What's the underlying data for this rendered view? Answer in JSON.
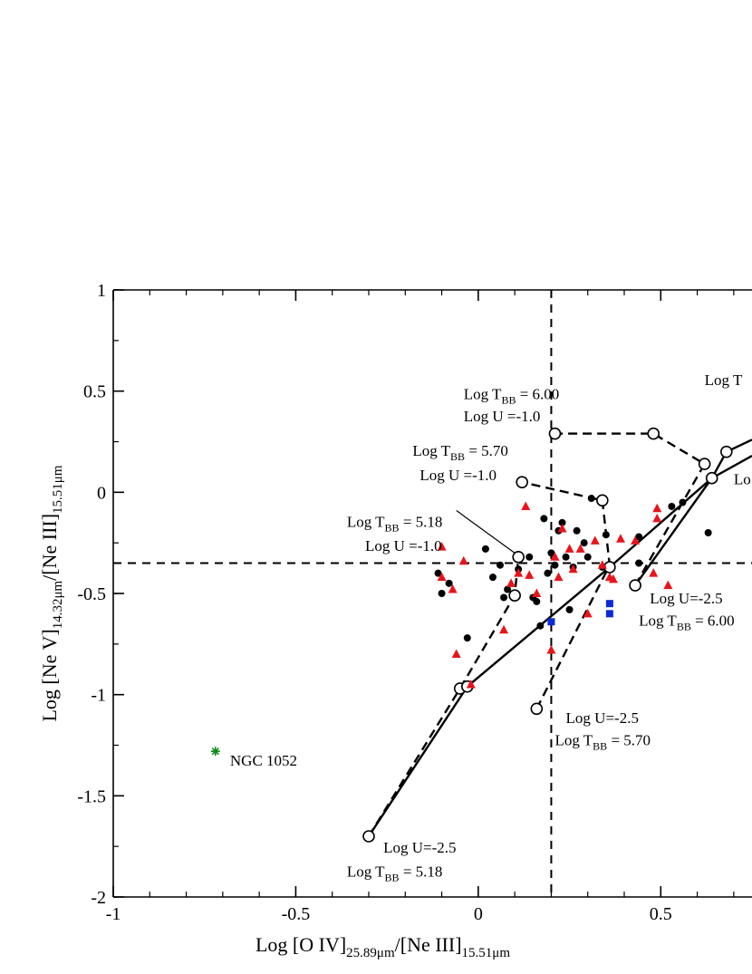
{
  "chart_data": {
    "type": "scatter",
    "xlabel_parts": [
      "Log [O IV]",
      "25.89μm",
      "/[Ne III]",
      "15.51μm"
    ],
    "ylabel_parts": [
      "Log [Ne V]",
      "14.32μm",
      "/[Ne III]",
      "15.51μm"
    ],
    "xlim": [
      -1,
      0.75
    ],
    "ylim": [
      -2,
      1
    ],
    "x_ticks": [
      {
        "value": -1,
        "label": "-1"
      },
      {
        "value": -0.5,
        "label": "-0.5"
      },
      {
        "value": 0,
        "label": "0"
      },
      {
        "value": 0.5,
        "label": "0.5"
      }
    ],
    "y_ticks": [
      {
        "value": -2,
        "label": "-2"
      },
      {
        "value": -1.5,
        "label": "-1.5"
      },
      {
        "value": -1,
        "label": "-1"
      },
      {
        "value": -0.5,
        "label": "-0.5"
      },
      {
        "value": 0,
        "label": "0"
      },
      {
        "value": 0.5,
        "label": "0.5"
      },
      {
        "value": 1,
        "label": "1"
      }
    ],
    "x_minor_step": 0.1,
    "y_minor_step": 0.25,
    "reference_lines": [
      {
        "orientation": "vertical",
        "value": 0.2,
        "style": "dashed"
      },
      {
        "orientation": "horizontal",
        "value": -0.35,
        "style": "dashed"
      }
    ],
    "series": [
      {
        "marker": "circle-filled",
        "color": "#000000",
        "points": [
          [
            -0.11,
            -0.4
          ],
          [
            -0.1,
            -0.5
          ],
          [
            -0.08,
            -0.45
          ],
          [
            -0.03,
            -0.72
          ],
          [
            0.02,
            -0.28
          ],
          [
            0.04,
            -0.42
          ],
          [
            0.06,
            -0.36
          ],
          [
            0.07,
            -0.52
          ],
          [
            0.08,
            -0.48
          ],
          [
            0.11,
            -0.38
          ],
          [
            0.14,
            -0.32
          ],
          [
            0.15,
            -0.52
          ],
          [
            0.16,
            -0.54
          ],
          [
            0.17,
            -0.66
          ],
          [
            0.18,
            -0.13
          ],
          [
            0.19,
            -0.4
          ],
          [
            0.2,
            -0.3
          ],
          [
            0.21,
            -0.36
          ],
          [
            0.22,
            -0.19
          ],
          [
            0.23,
            -0.15
          ],
          [
            0.24,
            -0.32
          ],
          [
            0.25,
            -0.58
          ],
          [
            0.26,
            -0.37
          ],
          [
            0.27,
            -0.19
          ],
          [
            0.29,
            -0.25
          ],
          [
            0.3,
            -0.32
          ],
          [
            0.31,
            -0.03
          ],
          [
            0.34,
            -0.37
          ],
          [
            0.35,
            -0.21
          ],
          [
            0.44,
            -0.22
          ],
          [
            0.44,
            -0.35
          ],
          [
            0.53,
            -0.07
          ],
          [
            0.56,
            -0.05
          ],
          [
            0.63,
            -0.2
          ]
        ]
      },
      {
        "marker": "triangle",
        "color": "#e8141b",
        "points": [
          [
            -0.1,
            -0.27
          ],
          [
            -0.1,
            -0.42
          ],
          [
            -0.07,
            -0.48
          ],
          [
            -0.06,
            -0.8
          ],
          [
            -0.04,
            -0.34
          ],
          [
            -0.02,
            -0.95
          ],
          [
            0.07,
            -0.68
          ],
          [
            0.09,
            -0.45
          ],
          [
            0.11,
            -0.4
          ],
          [
            0.13,
            -0.07
          ],
          [
            0.14,
            -0.41
          ],
          [
            0.16,
            -0.5
          ],
          [
            0.2,
            -0.78
          ],
          [
            0.21,
            -0.32
          ],
          [
            0.22,
            -0.42
          ],
          [
            0.23,
            -0.18
          ],
          [
            0.25,
            -0.28
          ],
          [
            0.26,
            -0.38
          ],
          [
            0.28,
            -0.28
          ],
          [
            0.3,
            -0.6
          ],
          [
            0.32,
            -0.24
          ],
          [
            0.34,
            -0.36
          ],
          [
            0.36,
            -0.42
          ],
          [
            0.37,
            -0.43
          ],
          [
            0.39,
            -0.23
          ],
          [
            0.43,
            -0.24
          ],
          [
            0.48,
            -0.4
          ],
          [
            0.49,
            -0.08
          ],
          [
            0.49,
            -0.13
          ],
          [
            0.52,
            -0.46
          ]
        ]
      },
      {
        "marker": "square",
        "color": "#0a2bd6",
        "points": [
          [
            0.2,
            -0.64
          ],
          [
            0.36,
            -0.55
          ],
          [
            0.36,
            -0.6
          ]
        ]
      },
      {
        "marker": "asterisk",
        "color": "#0b8a15",
        "points": [
          [
            -0.72,
            -1.28
          ]
        ]
      }
    ],
    "model_tracks": [
      {
        "style": "dashed",
        "points": [
          [
            -0.3,
            -1.7
          ],
          [
            -0.05,
            -0.97
          ],
          [
            0.1,
            -0.51
          ],
          [
            0.11,
            -0.32
          ]
        ]
      },
      {
        "style": "dashed",
        "points": [
          [
            0.16,
            -1.07
          ],
          [
            0.36,
            -0.36
          ],
          [
            0.34,
            -0.04
          ],
          [
            0.12,
            0.05
          ]
        ]
      },
      {
        "style": "dashed",
        "points": [
          [
            0.43,
            -0.46
          ],
          [
            0.62,
            0.14
          ],
          [
            0.48,
            0.29
          ],
          [
            0.21,
            0.29
          ]
        ]
      },
      {
        "style": "solid",
        "points": [
          [
            -0.3,
            -1.7
          ],
          [
            -0.03,
            -0.96
          ],
          [
            0.36,
            -0.37
          ],
          [
            0.64,
            0.07
          ],
          [
            0.75,
            0.18
          ]
        ]
      },
      {
        "style": "solid",
        "points": [
          [
            0.43,
            -0.46
          ],
          [
            0.64,
            0.07
          ],
          [
            0.68,
            0.2
          ],
          [
            0.75,
            0.26
          ]
        ]
      }
    ],
    "open_circle_points": [
      [
        -0.3,
        -1.7
      ],
      [
        -0.05,
        -0.97
      ],
      [
        -0.03,
        -0.96
      ],
      [
        0.1,
        -0.51
      ],
      [
        0.11,
        -0.32
      ],
      [
        0.16,
        -1.07
      ],
      [
        0.36,
        -0.37
      ],
      [
        0.34,
        -0.04
      ],
      [
        0.12,
        0.05
      ],
      [
        0.43,
        -0.46
      ],
      [
        0.62,
        0.14
      ],
      [
        0.48,
        0.29
      ],
      [
        0.21,
        0.29
      ],
      [
        0.64,
        0.07
      ],
      [
        0.68,
        0.2
      ]
    ],
    "annotations": [
      {
        "anchor": [
          -0.04,
          0.46
        ],
        "parts": [
          [
            "Log T",
            ""
          ],
          [
            "BB",
            "sub"
          ],
          [
            " = 6.00",
            ""
          ]
        ]
      },
      {
        "anchor": [
          -0.04,
          0.35
        ],
        "parts": [
          [
            "Log U =-1.0",
            ""
          ]
        ]
      },
      {
        "anchor": [
          -0.18,
          0.18
        ],
        "parts": [
          [
            "Log T",
            ""
          ],
          [
            "BB",
            "sub"
          ],
          [
            " = 5.70",
            ""
          ]
        ]
      },
      {
        "anchor": [
          -0.16,
          0.06
        ],
        "parts": [
          [
            "Log U =-1.0",
            ""
          ]
        ]
      },
      {
        "anchor": [
          -0.36,
          -0.17
        ],
        "parts": [
          [
            "Log T",
            ""
          ],
          [
            "BB",
            "sub"
          ],
          [
            " = 5.18",
            ""
          ]
        ]
      },
      {
        "anchor": [
          -0.31,
          -0.29
        ],
        "parts": [
          [
            "Log U =-1.0",
            ""
          ]
        ]
      },
      {
        "anchor": [
          0.47,
          -0.55
        ],
        "parts": [
          [
            "Log U=-2.5",
            ""
          ]
        ]
      },
      {
        "anchor": [
          0.44,
          -0.66
        ],
        "parts": [
          [
            "Log T",
            ""
          ],
          [
            "BB",
            "sub"
          ],
          [
            " = 6.00",
            ""
          ]
        ]
      },
      {
        "anchor": [
          0.24,
          -1.14
        ],
        "parts": [
          [
            "Log U=-2.5",
            ""
          ]
        ]
      },
      {
        "anchor": [
          0.21,
          -1.25
        ],
        "parts": [
          [
            "Log T",
            ""
          ],
          [
            "BB",
            "sub"
          ],
          [
            " = 5.70",
            ""
          ]
        ]
      },
      {
        "anchor": [
          -0.26,
          -1.78
        ],
        "parts": [
          [
            "Log U=-2.5",
            ""
          ]
        ]
      },
      {
        "anchor": [
          -0.36,
          -1.9
        ],
        "parts": [
          [
            "Log T",
            ""
          ],
          [
            "BB",
            "sub"
          ],
          [
            " = 5.18",
            ""
          ]
        ]
      },
      {
        "anchor": [
          -0.68,
          -1.35
        ],
        "parts": [
          [
            "NGC 1052",
            ""
          ]
        ]
      },
      {
        "anchor": [
          0.62,
          0.53
        ],
        "parts": [
          [
            "Log T",
            ""
          ]
        ]
      },
      {
        "anchor": [
          0.7,
          0.04
        ],
        "parts": [
          [
            "Lo",
            ""
          ]
        ]
      }
    ],
    "pointer_lines": [
      {
        "from": [
          -0.06,
          -0.09
        ],
        "to": [
          0.1,
          -0.3
        ]
      }
    ]
  }
}
